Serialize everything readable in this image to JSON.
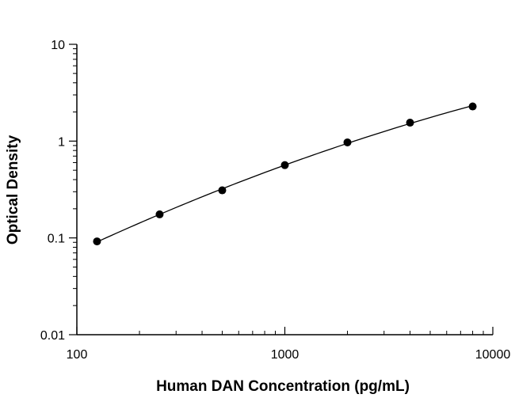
{
  "chart_data": {
    "type": "scatter",
    "title": "",
    "xlabel": "Human DAN Concentration (pg/mL)",
    "ylabel": "Optical Density",
    "xscale": "log",
    "yscale": "log",
    "xlim": [
      100,
      10000
    ],
    "ylim": [
      0.01,
      10
    ],
    "grid": false,
    "legend": "none",
    "x_ticks": [
      100,
      1000,
      10000
    ],
    "x_tick_labels": [
      "100",
      "1000",
      "10000"
    ],
    "y_ticks": [
      0.01,
      0.1,
      1,
      10
    ],
    "y_tick_labels": [
      "0.01",
      "0.1",
      "1",
      "10"
    ],
    "series": [
      {
        "x": [
          125,
          250,
          500,
          1000,
          2000,
          4000,
          8000
        ],
        "y": [
          0.092,
          0.175,
          0.31,
          0.565,
          0.97,
          1.55,
          2.28
        ],
        "marker": "circle",
        "fit_line": true,
        "color": "#000000"
      }
    ]
  }
}
